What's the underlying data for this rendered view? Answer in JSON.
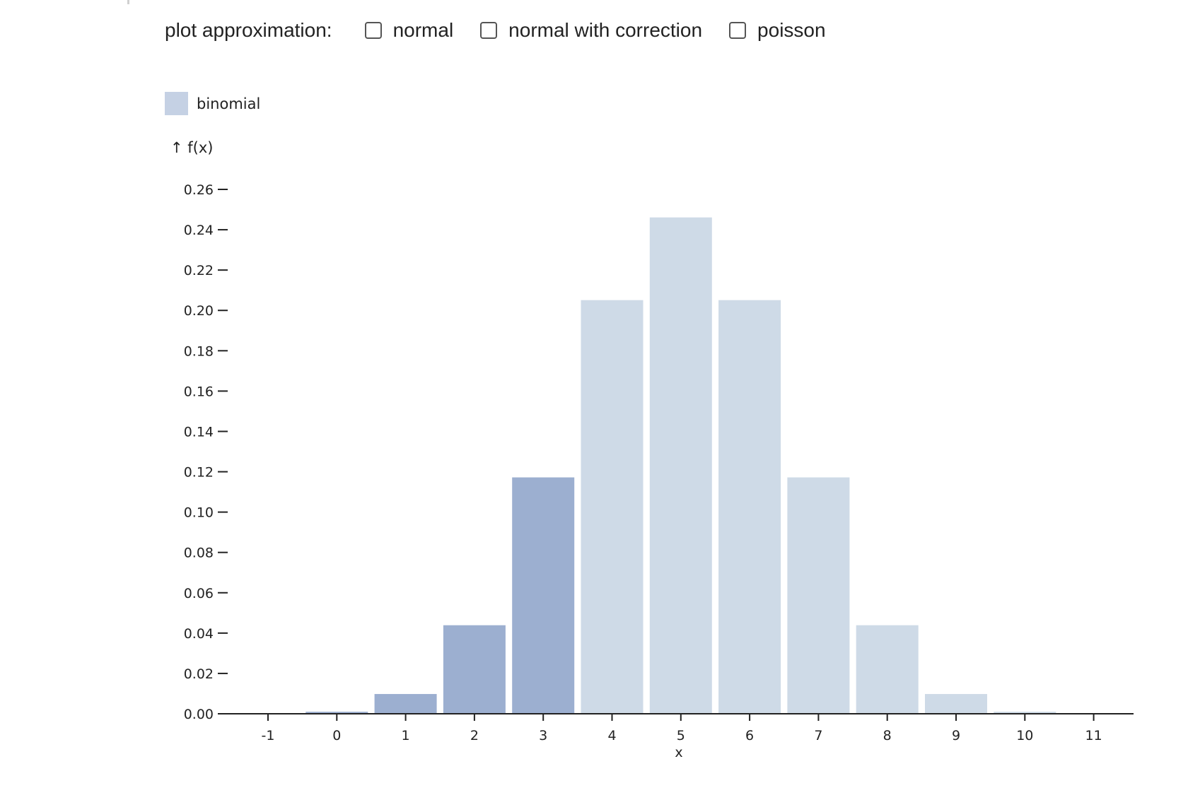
{
  "controls": {
    "label": "plot approximation:",
    "options": [
      {
        "label": "normal",
        "checked": false
      },
      {
        "label": "normal with correction",
        "checked": false
      },
      {
        "label": "poisson",
        "checked": false
      }
    ]
  },
  "legend": {
    "label": "binomial",
    "color": "#c5d1e4"
  },
  "colors": {
    "highlight": "#9cafd0",
    "base": "#cedae7",
    "axis": "#222222"
  },
  "chart_data": {
    "type": "bar",
    "ylabel": "↑ f(x)",
    "xlabel": "x",
    "xlim": [
      -1,
      11
    ],
    "ylim": [
      0,
      0.26
    ],
    "x_ticks": [
      "-1",
      "0",
      "1",
      "2",
      "3",
      "4",
      "5",
      "6",
      "7",
      "8",
      "9",
      "10",
      "11"
    ],
    "y_ticks": [
      "0.00",
      "0.02",
      "0.04",
      "0.06",
      "0.08",
      "0.10",
      "0.12",
      "0.14",
      "0.16",
      "0.18",
      "0.20",
      "0.22",
      "0.24",
      "0.26"
    ],
    "series": [
      {
        "name": "binomial",
        "x": [
          0,
          1,
          2,
          3,
          4,
          5,
          6,
          7,
          8,
          9,
          10
        ],
        "values": [
          0.001,
          0.0098,
          0.0439,
          0.1172,
          0.2051,
          0.2461,
          0.2051,
          0.1172,
          0.0439,
          0.0098,
          0.001
        ],
        "highlighted_up_to_x": 3
      }
    ]
  }
}
